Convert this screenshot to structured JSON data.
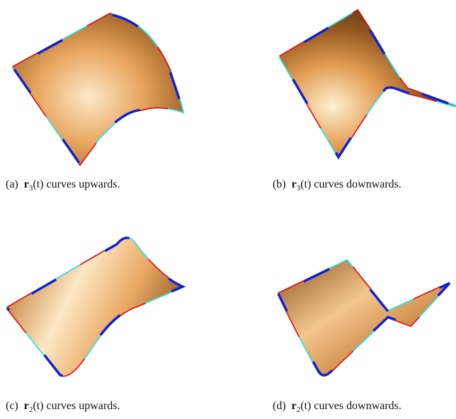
{
  "figures": [
    {
      "label": "(a)",
      "symbol": "r",
      "subscript": "3",
      "argument": "(t)",
      "text": "curves upwards."
    },
    {
      "label": "(b)",
      "symbol": "r",
      "subscript": "3",
      "argument": "(t)",
      "text": "curves downwards."
    },
    {
      "label": "(c)",
      "symbol": "r",
      "subscript": "2",
      "argument": "(t)",
      "text": "curves upwards."
    },
    {
      "label": "(d)",
      "symbol": "r",
      "subscript": "2",
      "argument": "(t)",
      "text": "curves downwards."
    }
  ]
}
